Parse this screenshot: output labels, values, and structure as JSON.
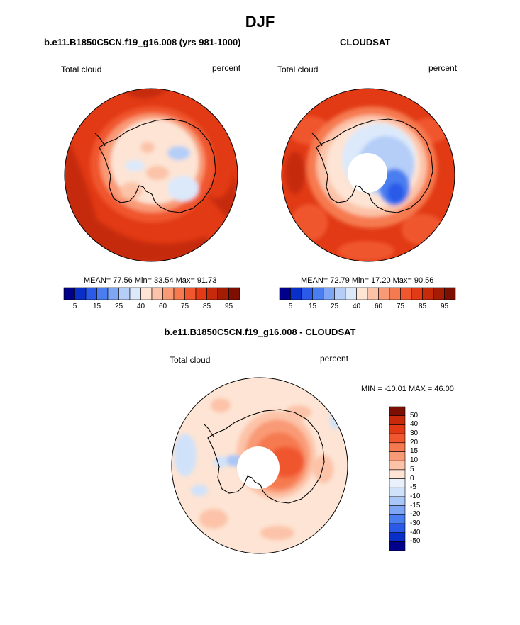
{
  "figure": {
    "title": "DJF"
  },
  "panels": [
    {
      "title": "b.e11.B1850C5CN.f19_g16.008 (yrs 981-1000)",
      "left_label": "Total cloud",
      "right_label": "percent",
      "stats": "MEAN=  77.56  Min=  33.54  Max=  91.73"
    },
    {
      "title": "CLOUDSAT",
      "left_label": "Total cloud",
      "right_label": "percent",
      "stats": "MEAN=  72.79  Min=  17.20  Max=  90.56"
    },
    {
      "title": "b.e11.B1850C5CN.f19_g16.008 - CLOUDSAT",
      "left_label": "Total cloud",
      "right_label": "percent",
      "stats": "MIN = -10.01 MAX =  46.00"
    }
  ],
  "colorbar_h": {
    "colors": [
      "#00008b",
      "#0a2ec8",
      "#2c5ae8",
      "#4a7ef0",
      "#7ea6f5",
      "#b4cef8",
      "#dce9fb",
      "#fde4d4",
      "#fcc3a8",
      "#f99a76",
      "#f67a50",
      "#f0572e",
      "#e13a15",
      "#c62a0b",
      "#a51c05",
      "#7d0f02"
    ],
    "labels": [
      "5",
      "15",
      "25",
      "40",
      "60",
      "75",
      "85",
      "95"
    ]
  },
  "colorbar_v": {
    "colors": [
      "#00008b",
      "#0a2ec8",
      "#2c5ae8",
      "#4a7ef0",
      "#7ea6f5",
      "#a8c6f7",
      "#d0e2fa",
      "#e8f1fc",
      "#fde4d4",
      "#fcc3a8",
      "#f99a76",
      "#f67a50",
      "#f0572e",
      "#e13a15",
      "#c62a0b",
      "#7d0f02"
    ],
    "labels": [
      "50",
      "40",
      "30",
      "20",
      "15",
      "10",
      "5",
      "0",
      "-5",
      "-10",
      "-15",
      "-20",
      "-30",
      "-40",
      "-50"
    ]
  },
  "chart_data": [
    {
      "type": "heatmap",
      "title": "b.e11.B1850C5CN.f19_g16.008 (yrs 981-1000)",
      "variable": "Total cloud",
      "units": "percent",
      "projection": "south polar stereographic",
      "season": "DJF",
      "mean": 77.56,
      "min": 33.54,
      "max": 91.73,
      "levels": [
        5,
        10,
        15,
        20,
        25,
        30,
        40,
        50,
        60,
        70,
        75,
        80,
        85,
        90,
        95
      ]
    },
    {
      "type": "heatmap",
      "title": "CLOUDSAT",
      "variable": "Total cloud",
      "units": "percent",
      "projection": "south polar stereographic",
      "season": "DJF",
      "mean": 72.79,
      "min": 17.2,
      "max": 90.56,
      "levels": [
        5,
        10,
        15,
        20,
        25,
        30,
        40,
        50,
        60,
        70,
        75,
        80,
        85,
        90,
        95
      ]
    },
    {
      "type": "heatmap",
      "title": "b.e11.B1850C5CN.f19_g16.008 - CLOUDSAT",
      "variable": "Total cloud",
      "units": "percent",
      "projection": "south polar stereographic",
      "season": "DJF",
      "min": -10.01,
      "max": 46.0,
      "levels": [
        -50,
        -40,
        -30,
        -20,
        -15,
        -10,
        -5,
        0,
        5,
        10,
        15,
        20,
        30,
        40,
        50
      ]
    }
  ]
}
